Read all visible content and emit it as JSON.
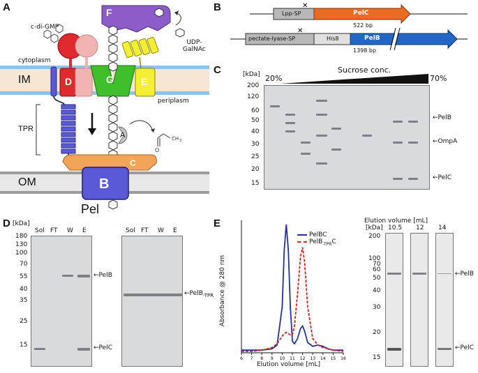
{
  "panel_labels": {
    "a": "A",
    "b": "B",
    "c": "C",
    "d": "D",
    "e": "E"
  },
  "panel_a": {
    "c_di_gmp": "c-di-GMP",
    "udp_galnac": "UDP-\nGalNAc",
    "cytoplasm": "cytoplasm",
    "periplasm": "periplasm",
    "im": "IM",
    "om": "OM",
    "tpr": "TPR",
    "pel": "Pel",
    "proteins": {
      "f": "F",
      "d": "D",
      "g": "G",
      "e": "E",
      "a": "A",
      "c": "C",
      "b": "B"
    },
    "colors": {
      "F": "#8d5cc8",
      "D": "#e0282f",
      "G": "#3fbf2a",
      "E": "#f4ef33",
      "B": "#5a5ad6",
      "C": "#f2a55a",
      "A": "#c8c8c8"
    }
  },
  "panel_b": {
    "construct1": {
      "sp": "Lpp-SP",
      "gene": "PelC",
      "size": "522 bp"
    },
    "construct2": {
      "sp": "pectate-lyase-SP",
      "tag": "His8",
      "gene": "PelB",
      "size": "1398 bp"
    }
  },
  "panel_c": {
    "unit": "[kDa]",
    "start_pct": "20%",
    "end_pct": "70%",
    "gradient_label": "Sucrose conc.",
    "markers": [
      "200",
      "120",
      "60",
      "50",
      "40",
      "30",
      "25",
      "20",
      "15"
    ],
    "bands": [
      "PelB",
      "OmpA",
      "PelC"
    ]
  },
  "panel_d": {
    "unit": "[kDa]",
    "markers": [
      "180",
      "130",
      "100",
      "70",
      "55",
      "40",
      "35",
      "25",
      "15"
    ],
    "lanes": [
      "Sol",
      "FT",
      "W",
      "E"
    ],
    "left_bands": [
      "PelB",
      "PelC"
    ],
    "right_band": "PelB",
    "right_band_sub": "-TPR"
  },
  "panel_e": {
    "ylabel": "Absorbance @ 280 nm",
    "xlabel": "Elution volume [mL]",
    "legend": [
      "PelBC",
      "PelB",
      "-TPR",
      "C"
    ],
    "gel_title": "Elution volume [mL]",
    "unit": "[kDa]",
    "gel_lanes": [
      "10.5",
      "12",
      "14"
    ],
    "markers": [
      "200",
      "100",
      "70",
      "60",
      "50",
      "40",
      "30",
      "20",
      "15"
    ],
    "bands": [
      "PelB",
      "PelC"
    ],
    "chart_data": {
      "type": "line",
      "x": [
        6,
        7,
        8,
        9,
        9.5,
        10,
        10.2,
        10.4,
        10.6,
        10.8,
        11,
        11.2,
        11.5,
        11.8,
        12,
        12.2,
        12.5,
        13,
        13.5,
        14,
        14.5,
        15,
        16
      ],
      "series": [
        {
          "name": "PelBC",
          "color": "#1f2fa8",
          "values": [
            0.01,
            0.01,
            0.01,
            0.02,
            0.05,
            0.35,
            0.8,
            1.0,
            0.8,
            0.35,
            0.08,
            0.06,
            0.1,
            0.18,
            0.2,
            0.16,
            0.07,
            0.04,
            0.05,
            0.04,
            0.02,
            0.01,
            0.01
          ]
        },
        {
          "name": "PelB-TPRC",
          "color": "#e0201c",
          "values": [
            0.0,
            0.0,
            0.01,
            0.03,
            0.06,
            0.12,
            0.14,
            0.15,
            0.14,
            0.13,
            0.13,
            0.2,
            0.45,
            0.75,
            0.82,
            0.7,
            0.35,
            0.1,
            0.05,
            0.03,
            0.02,
            0.01,
            0.0
          ]
        }
      ],
      "xlim": [
        6,
        16
      ],
      "xticks": [
        "6",
        "7",
        "8",
        "9",
        "10",
        "11",
        "12",
        "13",
        "14",
        "15",
        "16"
      ]
    }
  }
}
